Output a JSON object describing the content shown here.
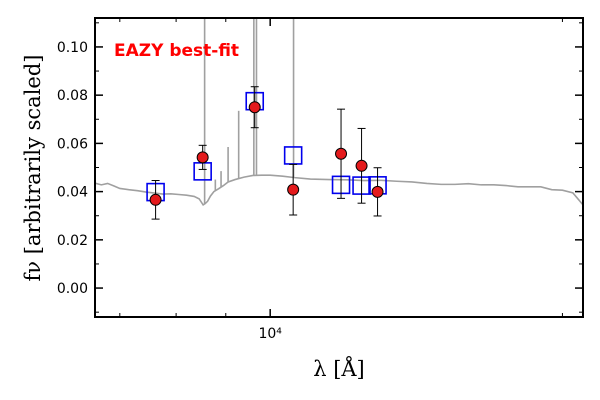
{
  "chart_data": {
    "type": "scatter",
    "title": "",
    "annotation": "EAZY best-fit",
    "xlabel": "λ [Å]",
    "ylabel": "fν [arbitrarily scaled]",
    "xscale": "log",
    "xlim": [
      6600,
      21000
    ],
    "ylim": [
      -0.012,
      0.112
    ],
    "grid": false,
    "x_ticks": [
      {
        "value": 10000,
        "label": "10⁴"
      }
    ],
    "y_ticks": [
      {
        "value": 0.0,
        "label": "0.00"
      },
      {
        "value": 0.02,
        "label": "0.02"
      },
      {
        "value": 0.04,
        "label": "0.04"
      },
      {
        "value": 0.06,
        "label": "0.06"
      },
      {
        "value": 0.08,
        "label": "0.08"
      },
      {
        "value": 0.1,
        "label": "0.10"
      }
    ],
    "series": [
      {
        "type": "line",
        "points": [
          [
            6600,
            0.0435
          ],
          [
            6700,
            0.0428
          ],
          [
            6800,
            0.0434
          ],
          [
            6900,
            0.0424
          ],
          [
            7000,
            0.0413
          ],
          [
            7150,
            0.0408
          ],
          [
            7300,
            0.0404
          ],
          [
            7450,
            0.0398
          ],
          [
            7600,
            0.0394
          ],
          [
            7750,
            0.039
          ],
          [
            7900,
            0.0391
          ],
          [
            8050,
            0.0388
          ],
          [
            8200,
            0.0385
          ],
          [
            8350,
            0.038
          ],
          [
            8450,
            0.037
          ],
          [
            8530,
            0.0345
          ],
          [
            8570,
            0.035
          ],
          [
            8620,
            0.036
          ],
          [
            8680,
            0.0382
          ],
          [
            8750,
            0.04
          ],
          [
            8850,
            0.0412
          ],
          [
            8950,
            0.0425
          ],
          [
            9050,
            0.044
          ],
          [
            9200,
            0.045
          ],
          [
            9400,
            0.046
          ],
          [
            9600,
            0.0467
          ],
          [
            9800,
            0.0468
          ],
          [
            10000,
            0.0468
          ],
          [
            10300,
            0.0464
          ],
          [
            10600,
            0.0458
          ],
          [
            11000,
            0.0452
          ],
          [
            11500,
            0.045
          ],
          [
            12000,
            0.0449
          ],
          [
            12500,
            0.0446
          ],
          [
            13000,
            0.0447
          ],
          [
            13500,
            0.0443
          ],
          [
            14000,
            0.044
          ],
          [
            14500,
            0.0434
          ],
          [
            15000,
            0.043
          ],
          [
            15500,
            0.043
          ],
          [
            16000,
            0.0433
          ],
          [
            16500,
            0.0428
          ],
          [
            17000,
            0.0428
          ],
          [
            17500,
            0.0425
          ],
          [
            18000,
            0.042
          ],
          [
            18500,
            0.042
          ],
          [
            19000,
            0.042
          ],
          [
            19500,
            0.0408
          ],
          [
            20000,
            0.0406
          ],
          [
            20500,
            0.0395
          ],
          [
            21000,
            0.0345
          ]
        ],
        "emission_lines": [
          {
            "x": 8560,
            "peak": 0.12
          },
          {
            "x": 8780,
            "peak": 0.045
          },
          {
            "x": 8900,
            "peak": 0.0485
          },
          {
            "x": 9050,
            "peak": 0.0585
          },
          {
            "x": 9280,
            "peak": 0.0735
          },
          {
            "x": 9620,
            "peak": 0.12
          },
          {
            "x": 9680,
            "peak": 0.12
          },
          {
            "x": 10570,
            "peak": 0.12
          }
        ]
      },
      {
        "type": "model-photometry",
        "points": [
          {
            "x": 7620,
            "y": 0.0398
          },
          {
            "x": 8520,
            "y": 0.0484
          },
          {
            "x": 9640,
            "y": 0.0775
          },
          {
            "x": 10560,
            "y": 0.055
          },
          {
            "x": 11830,
            "y": 0.0428
          },
          {
            "x": 12420,
            "y": 0.0425
          },
          {
            "x": 12900,
            "y": 0.0426
          }
        ]
      },
      {
        "type": "observed-photometry",
        "points": [
          {
            "x": 7620,
            "y": 0.0366,
            "yerr": 0.008
          },
          {
            "x": 8520,
            "y": 0.0542,
            "yerr": 0.005
          },
          {
            "x": 9640,
            "y": 0.075,
            "yerr": 0.0085
          },
          {
            "x": 10560,
            "y": 0.0408,
            "yerr": 0.0105
          },
          {
            "x": 11830,
            "y": 0.0557,
            "yerr": 0.0185
          },
          {
            "x": 12420,
            "y": 0.0507,
            "yerr": 0.0155
          },
          {
            "x": 12900,
            "y": 0.0399,
            "yerr": 0.01
          }
        ]
      }
    ],
    "colors": {
      "spectrum": "#a0a0a0",
      "model_marker": "#0000ee",
      "observed_fill": "#e41a1c",
      "observed_edge": "#000000",
      "errorbar": "#000000",
      "annotation": "#ff0000"
    }
  }
}
